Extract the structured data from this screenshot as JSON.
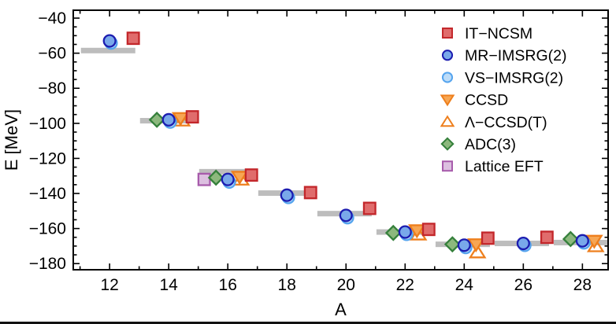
{
  "page": {
    "background": "#ffffff",
    "bottom_rule_color": "#111111"
  },
  "chart_data": {
    "type": "scatter",
    "title": "",
    "xlabel": "A",
    "ylabel": "E [MeV]",
    "xlim": [
      10.77,
      28.87
    ],
    "ylim": [
      -183.5,
      -35.5
    ],
    "grid": false,
    "frame_color": "#000000",
    "text_color": "#000000",
    "legend_position": "top-right",
    "xticks": {
      "major": [
        12,
        14,
        16,
        18,
        20,
        22,
        24,
        26,
        28
      ],
      "labels": [
        "12",
        "14",
        "16",
        "18",
        "20",
        "22",
        "24",
        "26",
        "28"
      ],
      "minor_step": 1
    },
    "yticks": {
      "major": [
        -40,
        -60,
        -80,
        -100,
        -120,
        -140,
        -160,
        -180
      ],
      "labels": [
        "−40",
        "−60",
        "−80",
        "−100",
        "−120",
        "−140",
        "−160",
        "−180"
      ],
      "minor_step": 5
    },
    "reference_bars": {
      "name": "experiment-bars",
      "color": "#bdbdbd",
      "center_offset": -0.05,
      "halfwidth": 0.92,
      "points": [
        [
          12,
          -58.5
        ],
        [
          14,
          -98.5
        ],
        [
          16,
          -127.6
        ],
        [
          18,
          -139.8
        ],
        [
          20,
          -151.5
        ],
        [
          22,
          -162.0
        ],
        [
          24,
          -169.0
        ],
        [
          26,
          -168.5
        ],
        [
          28,
          -168.0
        ]
      ]
    },
    "series": [
      {
        "name": "IT−NCSM",
        "marker": "square",
        "fill": "#e06c6c",
        "edge": "#c3272b",
        "offset": 0.8,
        "points": [
          [
            12,
            -51.5
          ],
          [
            14,
            -96.3
          ],
          [
            16,
            -129.5
          ],
          [
            18,
            -139.5
          ],
          [
            20,
            -148.5
          ],
          [
            22,
            -160.5
          ],
          [
            24,
            -165.5
          ],
          [
            26,
            -165.0
          ]
        ]
      },
      {
        "name": "MR−IMSRG(2)",
        "marker": "circle",
        "fill": "#79a8ea",
        "edge": "#1c1cb0",
        "offset": 0.0,
        "points": [
          [
            12,
            -53.0
          ],
          [
            14,
            -98.0
          ],
          [
            16,
            -132.0
          ],
          [
            18,
            -141.0
          ],
          [
            20,
            -152.5
          ],
          [
            22,
            -162.0
          ],
          [
            24,
            -169.5
          ],
          [
            26,
            -168.5
          ],
          [
            28,
            -167.0
          ]
        ]
      },
      {
        "name": "VS−IMSRG(2)",
        "marker": "circle",
        "fill": "#bddcf8",
        "edge": "#55a4ee",
        "offset": 0.05,
        "points": [
          [
            12,
            -54.2
          ],
          [
            14,
            -99.3
          ],
          [
            16,
            -133.5
          ],
          [
            18,
            -142.3
          ],
          [
            20,
            -153.8
          ],
          [
            22,
            -163.3
          ],
          [
            24,
            -170.8
          ],
          [
            26,
            -169.6
          ],
          [
            28,
            -168.2
          ]
        ]
      },
      {
        "name": "CCSD",
        "marker": "tri-down",
        "fill": "#f7a653",
        "edge": "#ee7f1d",
        "offset": 0.4,
        "points": [
          [
            14,
            -97.0
          ],
          [
            16,
            -130.5
          ],
          [
            22,
            -161.0
          ],
          [
            24,
            -169.0
          ],
          [
            28,
            -167.0
          ]
        ]
      },
      {
        "name": "Λ−CCSD(T)",
        "marker": "tri-up",
        "fill": "none",
        "edge": "#ee7f1d",
        "offset": 0.45,
        "points": [
          [
            14,
            -98.3
          ],
          [
            16,
            -132.0
          ],
          [
            22,
            -163.3
          ],
          [
            24,
            -173.5
          ],
          [
            28,
            -170.0
          ]
        ]
      },
      {
        "name": "ADC(3)",
        "marker": "diamond",
        "fill": "#8cb87d",
        "edge": "#35803b",
        "offset": -0.4,
        "points": [
          [
            14,
            -98.0
          ],
          [
            16,
            -131.0
          ],
          [
            22,
            -162.5
          ],
          [
            24,
            -169.0
          ],
          [
            28,
            -166.0
          ]
        ]
      },
      {
        "name": "Lattice EFT",
        "marker": "square",
        "fill": "#dcc0e0",
        "edge": "#a75bab",
        "offset": -0.8,
        "points": [
          [
            16,
            -132.0
          ]
        ]
      }
    ]
  }
}
